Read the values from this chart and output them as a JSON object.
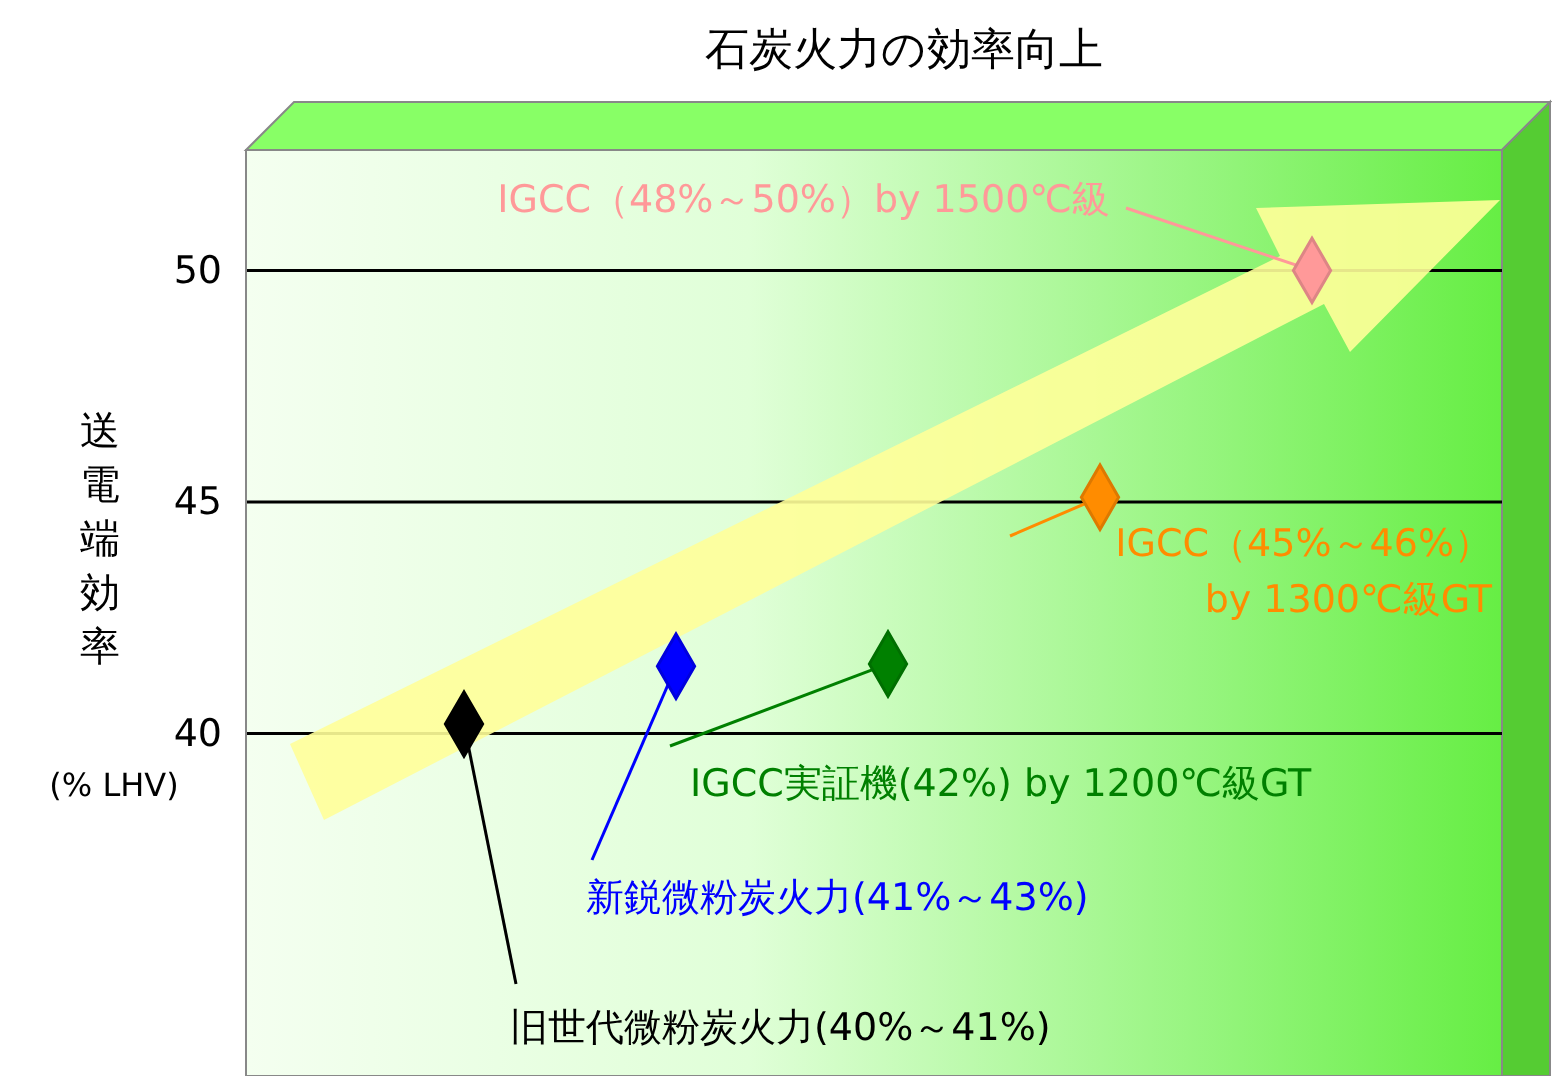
{
  "chart_data": {
    "type": "scatter",
    "title": "石炭火力の効率向上",
    "ylabel": "送電端効率",
    "categories": [
      null,
      null,
      null,
      null,
      null
    ],
    "values": [
      40.2,
      41.45,
      41.5,
      45.1,
      50
    ],
    "colors": [
      "#000000",
      "#0000ff",
      "#008000",
      "#ff8c00",
      "#ff9999"
    ],
    "ylim": [
      32.6,
      52.6
    ],
    "yticks": [
      40,
      45,
      50
    ],
    "grid": "y",
    "marker": "diamond",
    "annotations": [
      "旧世代微粉炭火力(40%～41%)",
      "新鋭微粉炭火力(41%～43%)",
      "IGCC実証機(42%) by 1200℃級GT",
      "IGCC（45%～46%）\nby 1300℃級GT",
      "IGCC（48%～50%）by 1500℃級",
      "(% LHV)"
    ]
  }
}
